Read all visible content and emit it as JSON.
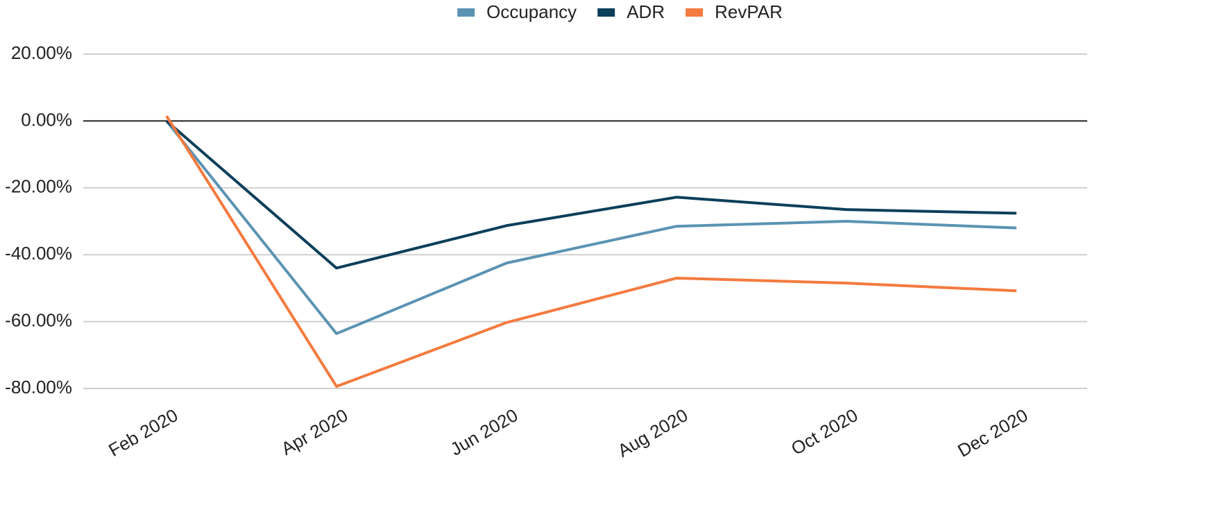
{
  "chart_data": {
    "type": "line",
    "categories": [
      "Feb 2020",
      "Apr 2020",
      "Jun 2020",
      "Aug 2020",
      "Oct 2020",
      "Dec 2020"
    ],
    "series": [
      {
        "name": "Occupancy",
        "color": "#5b93b3",
        "values": [
          0,
          -63.6,
          -42.5,
          -31.5,
          -30,
          -32
        ]
      },
      {
        "name": "ADR",
        "color": "#0c3f5a",
        "values": [
          0,
          -44,
          -31.3,
          -22.8,
          -26.5,
          -27.6
        ]
      },
      {
        "name": "RevPAR",
        "color": "#f47a3e",
        "values": [
          1.5,
          -79.4,
          -60.3,
          -47,
          -48.5,
          -50.8
        ]
      }
    ],
    "ylim": [
      -80,
      20
    ],
    "yticks": [
      {
        "value": 20,
        "label": "20.00%"
      },
      {
        "value": 0,
        "label": "0.00%"
      },
      {
        "value": -20,
        "label": "-20.00%"
      },
      {
        "value": -40,
        "label": "-40.00%"
      },
      {
        "value": -60,
        "label": "-60.00%"
      },
      {
        "value": -80,
        "label": "-80.00%"
      }
    ],
    "grid": true,
    "legend": "top"
  }
}
